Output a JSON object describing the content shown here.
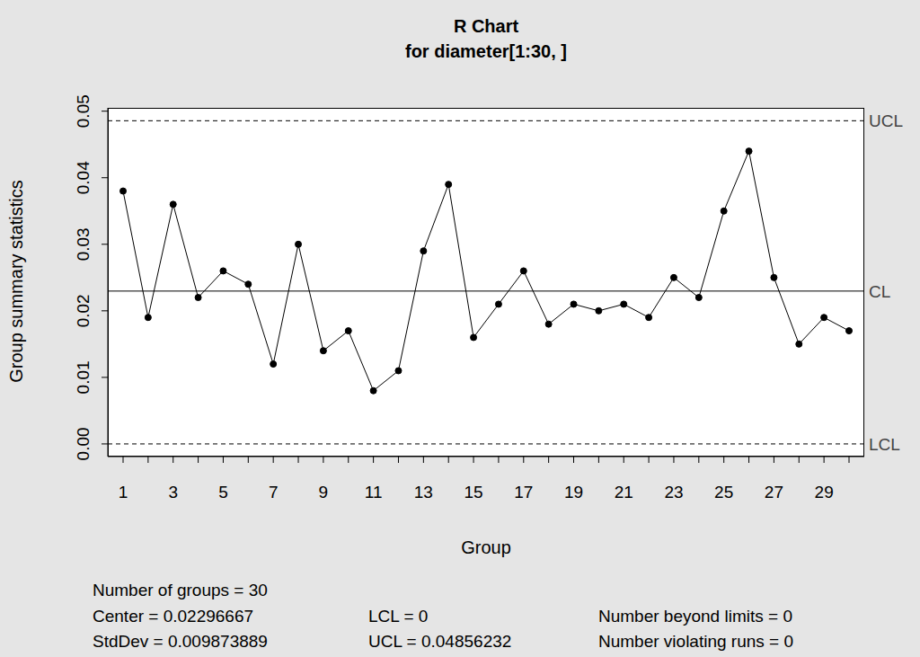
{
  "chart_data": {
    "type": "line",
    "title": "R Chart",
    "subtitle": "for diameter[1:30, ]",
    "x_label": "Group",
    "y_label": "Group summary statistics",
    "categories": [
      "1",
      null,
      "3",
      null,
      "5",
      null,
      "7",
      null,
      "9",
      null,
      "11",
      null,
      "13",
      null,
      "15",
      null,
      "17",
      null,
      "19",
      null,
      "21",
      null,
      "23",
      null,
      "25",
      null,
      "27",
      null,
      "29",
      null
    ],
    "values": [
      0.038,
      0.019,
      0.036,
      0.022,
      0.026,
      0.024,
      0.012,
      0.03,
      0.014,
      0.017,
      0.008,
      0.011,
      0.029,
      0.039,
      0.016,
      0.021,
      0.026,
      0.018,
      0.021,
      0.02,
      0.021,
      0.019,
      0.025,
      0.022,
      0.035,
      0.044,
      0.025,
      0.015,
      0.019,
      0.017
    ],
    "color": "#000000",
    "marker": "circle",
    "line_style": "solid",
    "ylim": [
      -0.0019,
      0.0505
    ],
    "yticks": [
      {
        "value": 0,
        "label": "0.00"
      },
      0.01,
      0.02,
      0.03,
      0.04,
      0.05
    ],
    "grid": false,
    "control_limits": [
      {
        "label": "UCL",
        "value": 0.04856232,
        "line_style": "dashed"
      },
      {
        "label": "CL",
        "value": 0.02296667,
        "line_style": "solid"
      },
      {
        "label": "LCL",
        "value": 0,
        "line_style": "dashed"
      }
    ],
    "annotations": [
      [
        "Number of groups = 30"
      ],
      [
        "Center = 0.02296667",
        "LCL = 0",
        "Number beyond limits = 0"
      ],
      [
        "StdDev = 0.009873889",
        "UCL = 0.04856232",
        "Number violating runs = 0"
      ]
    ]
  }
}
